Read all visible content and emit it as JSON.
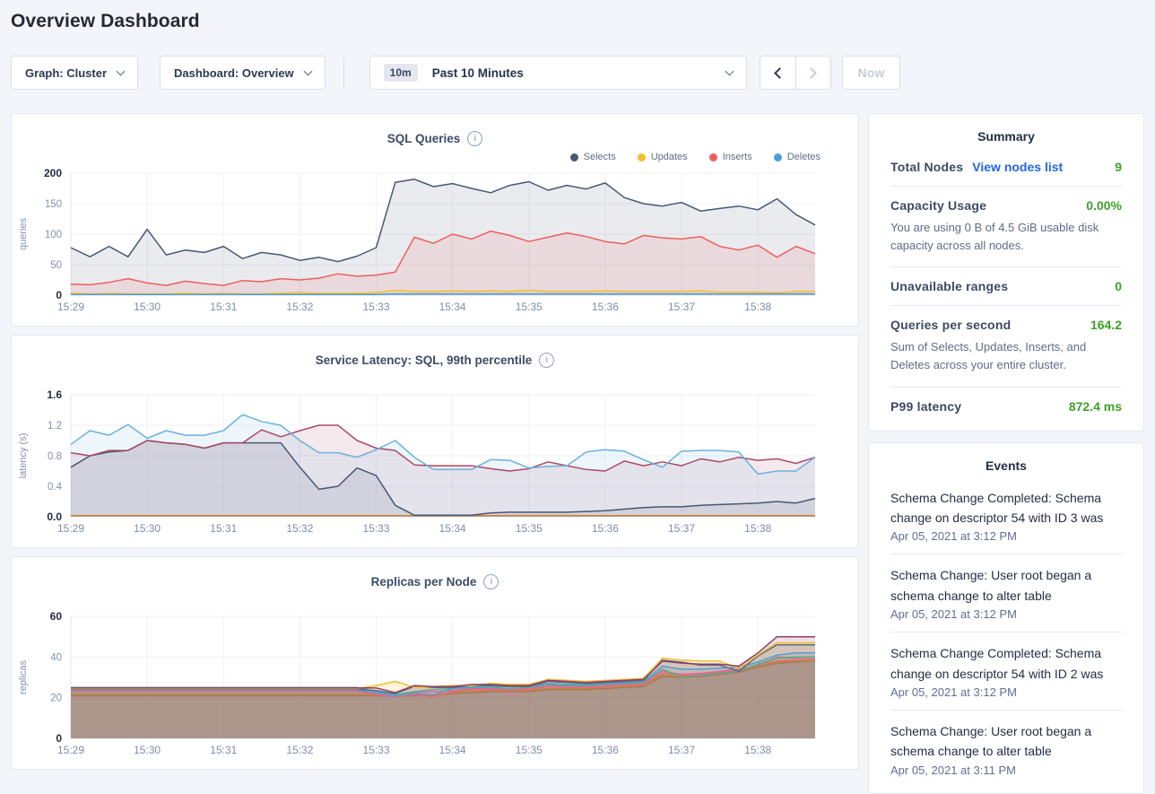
{
  "page": {
    "title": "Overview Dashboard"
  },
  "toolbar": {
    "graph_dropdown": {
      "label": "Graph: Cluster"
    },
    "dashboard_dropdown": {
      "label": "Dashboard: Overview"
    },
    "time_selector": {
      "badge": "10m",
      "label": "Past 10 Minutes"
    },
    "now_button": "Now"
  },
  "colors": {
    "page_background": "#f4f5fa",
    "accent_green": "#3ca028",
    "link_blue": "#2266e3",
    "selects": "#475872",
    "updates": "#f2be2c",
    "inserts": "#ef5e5e",
    "deletes": "#4e9fd8"
  },
  "chart_data": [
    {
      "type": "area",
      "slug": "sql-queries",
      "title": "SQL Queries",
      "ylabel": "queries",
      "ylim": [
        0,
        200
      ],
      "yticks": [
        "0",
        "50",
        "100",
        "150",
        "200"
      ],
      "xlabels": [
        "15:29",
        "15:30",
        "15:31",
        "15:32",
        "15:33",
        "15:34",
        "15:35",
        "15:36",
        "15:37",
        "15:38"
      ],
      "points_per_label": 4,
      "show_legend": true,
      "legend_position": "top-right",
      "fill_opacity": 0.12,
      "series": [
        {
          "name": "Selects",
          "color": "#475872",
          "values": [
            78,
            63,
            80,
            63,
            108,
            66,
            74,
            70,
            80,
            60,
            70,
            66,
            57,
            62,
            55,
            64,
            78,
            185,
            190,
            178,
            183,
            175,
            168,
            180,
            186,
            172,
            180,
            174,
            184,
            160,
            150,
            146,
            152,
            138,
            142,
            146,
            140,
            158,
            132,
            115
          ]
        },
        {
          "name": "Updates",
          "color": "#f2be2c",
          "values": [
            3,
            2,
            3,
            2,
            2,
            2,
            3,
            2,
            3,
            2,
            2,
            3,
            4,
            3,
            3,
            3,
            4,
            8,
            6,
            6,
            7,
            6,
            7,
            6,
            8,
            6,
            6,
            6,
            7,
            6,
            6,
            6,
            6,
            7,
            5,
            5,
            5,
            4,
            6,
            6
          ]
        },
        {
          "name": "Inserts",
          "color": "#ef5e5e",
          "values": [
            18,
            17,
            21,
            27,
            20,
            16,
            23,
            19,
            16,
            24,
            22,
            27,
            25,
            28,
            35,
            31,
            33,
            38,
            95,
            85,
            100,
            92,
            105,
            98,
            88,
            95,
            102,
            96,
            88,
            84,
            98,
            94,
            92,
            96,
            80,
            74,
            82,
            62,
            80,
            68
          ]
        },
        {
          "name": "Deletes",
          "color": "#4e9fd8",
          "values": [
            1,
            1,
            1,
            1,
            1,
            1,
            1,
            1,
            1,
            1,
            1,
            1,
            1,
            1,
            1,
            1,
            1,
            2,
            2,
            2,
            2,
            2,
            2,
            2,
            2,
            2,
            2,
            2,
            2,
            2,
            2,
            2,
            2,
            2,
            2,
            2,
            2,
            2,
            2,
            2
          ]
        }
      ]
    },
    {
      "type": "area",
      "slug": "service-latency",
      "title": "Service Latency: SQL, 99th percentile",
      "ylabel": "latency (s)",
      "ylim": [
        0,
        1.6
      ],
      "yticks": [
        "0.0",
        "0.4",
        "0.8",
        "1.2",
        "1.6"
      ],
      "xlabels": [
        "15:29",
        "15:30",
        "15:31",
        "15:32",
        "15:33",
        "15:34",
        "15:35",
        "15:36",
        "15:37",
        "15:38"
      ],
      "points_per_label": 4,
      "show_legend": false,
      "fill_opacity": 0.12,
      "series": [
        {
          "name": "",
          "color": "#c9822e",
          "values": [
            0.015,
            0.015,
            0.015,
            0.015,
            0.015,
            0.015,
            0.015,
            0.015,
            0.015,
            0.015,
            0.015,
            0.015,
            0.015,
            0.015,
            0.015,
            0.015,
            0.015,
            0.015,
            0.015,
            0.015,
            0.015,
            0.015,
            0.015,
            0.015,
            0.015,
            0.015,
            0.015,
            0.015,
            0.015,
            0.015,
            0.015,
            0.015,
            0.015,
            0.015,
            0.015,
            0.015,
            0.015,
            0.015,
            0.015,
            0.015
          ]
        },
        {
          "name": "",
          "color": "#475872",
          "values": [
            0.65,
            0.8,
            0.85,
            0.87,
            1.0,
            0.97,
            0.95,
            0.9,
            0.97,
            0.97,
            0.97,
            0.97,
            0.65,
            0.36,
            0.4,
            0.64,
            0.54,
            0.15,
            0.02,
            0.02,
            0.02,
            0.02,
            0.05,
            0.06,
            0.06,
            0.06,
            0.06,
            0.07,
            0.08,
            0.1,
            0.12,
            0.13,
            0.13,
            0.15,
            0.16,
            0.17,
            0.18,
            0.2,
            0.18,
            0.24
          ]
        },
        {
          "name": "",
          "color": "#aa4a68",
          "values": [
            0.84,
            0.8,
            0.87,
            0.87,
            1.0,
            0.97,
            0.95,
            0.9,
            0.97,
            0.97,
            1.14,
            1.05,
            1.13,
            1.2,
            1.2,
            1.0,
            0.9,
            0.87,
            0.68,
            0.67,
            0.67,
            0.67,
            0.63,
            0.6,
            0.63,
            0.72,
            0.67,
            0.62,
            0.6,
            0.73,
            0.67,
            0.72,
            0.67,
            0.76,
            0.72,
            0.78,
            0.74,
            0.76,
            0.7,
            0.78
          ]
        },
        {
          "name": "",
          "color": "#6bb1dd",
          "values": [
            0.95,
            1.13,
            1.07,
            1.21,
            1.03,
            1.13,
            1.07,
            1.07,
            1.13,
            1.34,
            1.25,
            1.2,
            1.0,
            0.84,
            0.84,
            0.78,
            0.88,
            1.0,
            0.78,
            0.62,
            0.62,
            0.62,
            0.75,
            0.74,
            0.64,
            0.66,
            0.67,
            0.85,
            0.88,
            0.86,
            0.75,
            0.65,
            0.86,
            0.87,
            0.87,
            0.85,
            0.56,
            0.6,
            0.6,
            0.78
          ]
        }
      ]
    },
    {
      "type": "area",
      "slug": "replicas-per-node",
      "title": "Replicas per Node",
      "ylabel": "replicas",
      "ylim": [
        0,
        60
      ],
      "yticks": [
        "0",
        "20",
        "40",
        "60"
      ],
      "xlabels": [
        "15:29",
        "15:30",
        "15:31",
        "15:32",
        "15:33",
        "15:34",
        "15:35",
        "15:36",
        "15:37",
        "15:38"
      ],
      "points_per_label": 4,
      "show_legend": false,
      "fill_opacity": 0.17,
      "series": [
        {
          "name": "",
          "color": "#b0705c",
          "values": [
            21,
            21,
            21,
            21,
            21,
            21,
            21,
            21,
            21,
            21,
            21,
            21,
            21,
            21,
            21,
            21,
            21,
            20.8,
            21,
            21,
            22,
            22.5,
            23,
            23,
            23,
            24,
            24,
            24,
            24.5,
            25,
            25.5,
            30.5,
            30,
            30.5,
            31.5,
            32.5,
            35,
            37,
            37.5,
            38
          ]
        },
        {
          "name": "",
          "color": "#a8923e",
          "values": [
            21.8,
            21.8,
            21.8,
            21.8,
            21.8,
            21.8,
            21.8,
            21.8,
            21.8,
            21.8,
            21.8,
            21.8,
            21.8,
            21.8,
            21.8,
            21.8,
            21.3,
            21,
            21.5,
            21.5,
            22.5,
            23,
            23.5,
            23.5,
            23.5,
            24.5,
            24.5,
            24.5,
            25,
            25.5,
            26,
            31,
            30.5,
            31,
            32,
            33,
            35.5,
            37.5,
            38,
            38
          ]
        },
        {
          "name": "",
          "color": "#f16969",
          "values": [
            23,
            23,
            23,
            23,
            23,
            23,
            23,
            23,
            23,
            23,
            23,
            23,
            23,
            23,
            23,
            23,
            21.5,
            20.5,
            21.5,
            20.5,
            23,
            24,
            24,
            23.5,
            24,
            25.5,
            25,
            25,
            25.5,
            26,
            26.5,
            32,
            31,
            31.5,
            32.5,
            33.5,
            36.5,
            38,
            38.5,
            39
          ]
        },
        {
          "name": "",
          "color": "#df65a5",
          "values": [
            23.4,
            23.4,
            23.4,
            23.4,
            23.4,
            23.4,
            23.4,
            23.4,
            23.4,
            23.4,
            23.4,
            23.4,
            23.4,
            23.4,
            23.4,
            23.4,
            22,
            20.5,
            22.5,
            23,
            23.5,
            24.5,
            24.5,
            24,
            24.5,
            26,
            25.5,
            25.5,
            26,
            26.5,
            27,
            33,
            31.5,
            32,
            33,
            34,
            36,
            40,
            39.5,
            40
          ]
        },
        {
          "name": "",
          "color": "#55b083",
          "values": [
            25,
            25,
            25,
            25,
            25,
            25,
            25,
            25,
            25,
            25,
            25,
            25,
            25,
            25,
            25,
            25,
            23,
            21.5,
            23,
            24,
            24.5,
            25,
            25,
            24.5,
            25,
            26.5,
            26,
            26,
            26.5,
            27,
            27.5,
            34,
            30,
            31,
            32,
            33,
            36.5,
            39.5,
            40,
            40
          ]
        },
        {
          "name": "",
          "color": "#4e9fd8",
          "values": [
            23.8,
            23.8,
            23.8,
            23.8,
            23.8,
            23.8,
            23.8,
            23.8,
            23.8,
            23.8,
            23.8,
            23.8,
            23.8,
            23.8,
            23.8,
            23.8,
            22.5,
            21,
            22,
            21.5,
            24.5,
            25.5,
            25.5,
            25.5,
            25.5,
            27,
            26.5,
            26.5,
            27,
            27.5,
            28,
            35.5,
            34,
            34,
            34.5,
            35,
            37.5,
            41,
            42,
            42
          ]
        },
        {
          "name": "",
          "color": "#5f6c87",
          "values": [
            24.2,
            24.2,
            24.2,
            24.2,
            24.2,
            24.2,
            24.2,
            24.2,
            24.2,
            24.2,
            24.2,
            24.2,
            24.2,
            24.2,
            24.2,
            24.2,
            23.5,
            22,
            25.5,
            25,
            25,
            26,
            26,
            25.5,
            25.5,
            28,
            27.5,
            27,
            27.5,
            28,
            28.5,
            38.5,
            37.5,
            36,
            36,
            33,
            40.5,
            46,
            46,
            46
          ]
        },
        {
          "name": "",
          "color": "#f2be2c",
          "values": [
            24.5,
            24.5,
            24.5,
            24.5,
            24.5,
            24.5,
            24.5,
            24.5,
            24.5,
            24.5,
            24.5,
            24.5,
            24.5,
            24.5,
            24.5,
            24.5,
            26,
            28,
            25,
            25.5,
            26,
            26,
            27,
            26.5,
            26.5,
            29,
            28.5,
            28,
            28.5,
            29,
            29.5,
            39.5,
            38.5,
            38,
            38,
            34.5,
            41,
            47,
            47,
            47
          ]
        },
        {
          "name": "",
          "color": "#8f4067",
          "values": [
            24.8,
            24.8,
            24.8,
            24.8,
            24.8,
            24.8,
            24.8,
            24.8,
            24.8,
            24.8,
            24.8,
            24.8,
            24.8,
            24.8,
            24.8,
            24.8,
            24.8,
            22.5,
            26,
            25.5,
            25.5,
            26.5,
            26.5,
            26,
            26,
            28.5,
            28,
            27.5,
            28,
            28.5,
            29,
            38,
            37,
            36.5,
            36.5,
            35.5,
            42,
            50,
            50,
            50
          ]
        }
      ]
    }
  ],
  "summary": {
    "heading": "Summary",
    "items": [
      {
        "title": "Total Nodes",
        "link": "View nodes list",
        "value": "9"
      },
      {
        "title": "Capacity Usage",
        "value": "0.00%",
        "description": "You are using 0 B of 4.5 GiB usable disk capacity across all nodes."
      },
      {
        "title": "Unavailable ranges",
        "value": "0"
      },
      {
        "title": "Queries per second",
        "value": "164.2",
        "description": "Sum of Selects, Updates, Inserts, and Deletes across your entire cluster."
      },
      {
        "title": "P99 latency",
        "value": "872.4 ms"
      }
    ]
  },
  "events": {
    "heading": "Events",
    "items": [
      {
        "text": "Schema Change Completed: Schema change on descriptor 54 with ID 3 was",
        "timestamp": "Apr 05, 2021 at 3:12 PM"
      },
      {
        "text": "Schema Change: User root began a schema change to alter table",
        "timestamp": "Apr 05, 2021 at 3:12 PM"
      },
      {
        "text": "Schema Change Completed: Schema change on descriptor 54 with ID 2 was",
        "timestamp": "Apr 05, 2021 at 3:12 PM"
      },
      {
        "text": "Schema Change: User root began a schema change to alter table",
        "timestamp": "Apr 05, 2021 at 3:11 PM"
      }
    ]
  }
}
